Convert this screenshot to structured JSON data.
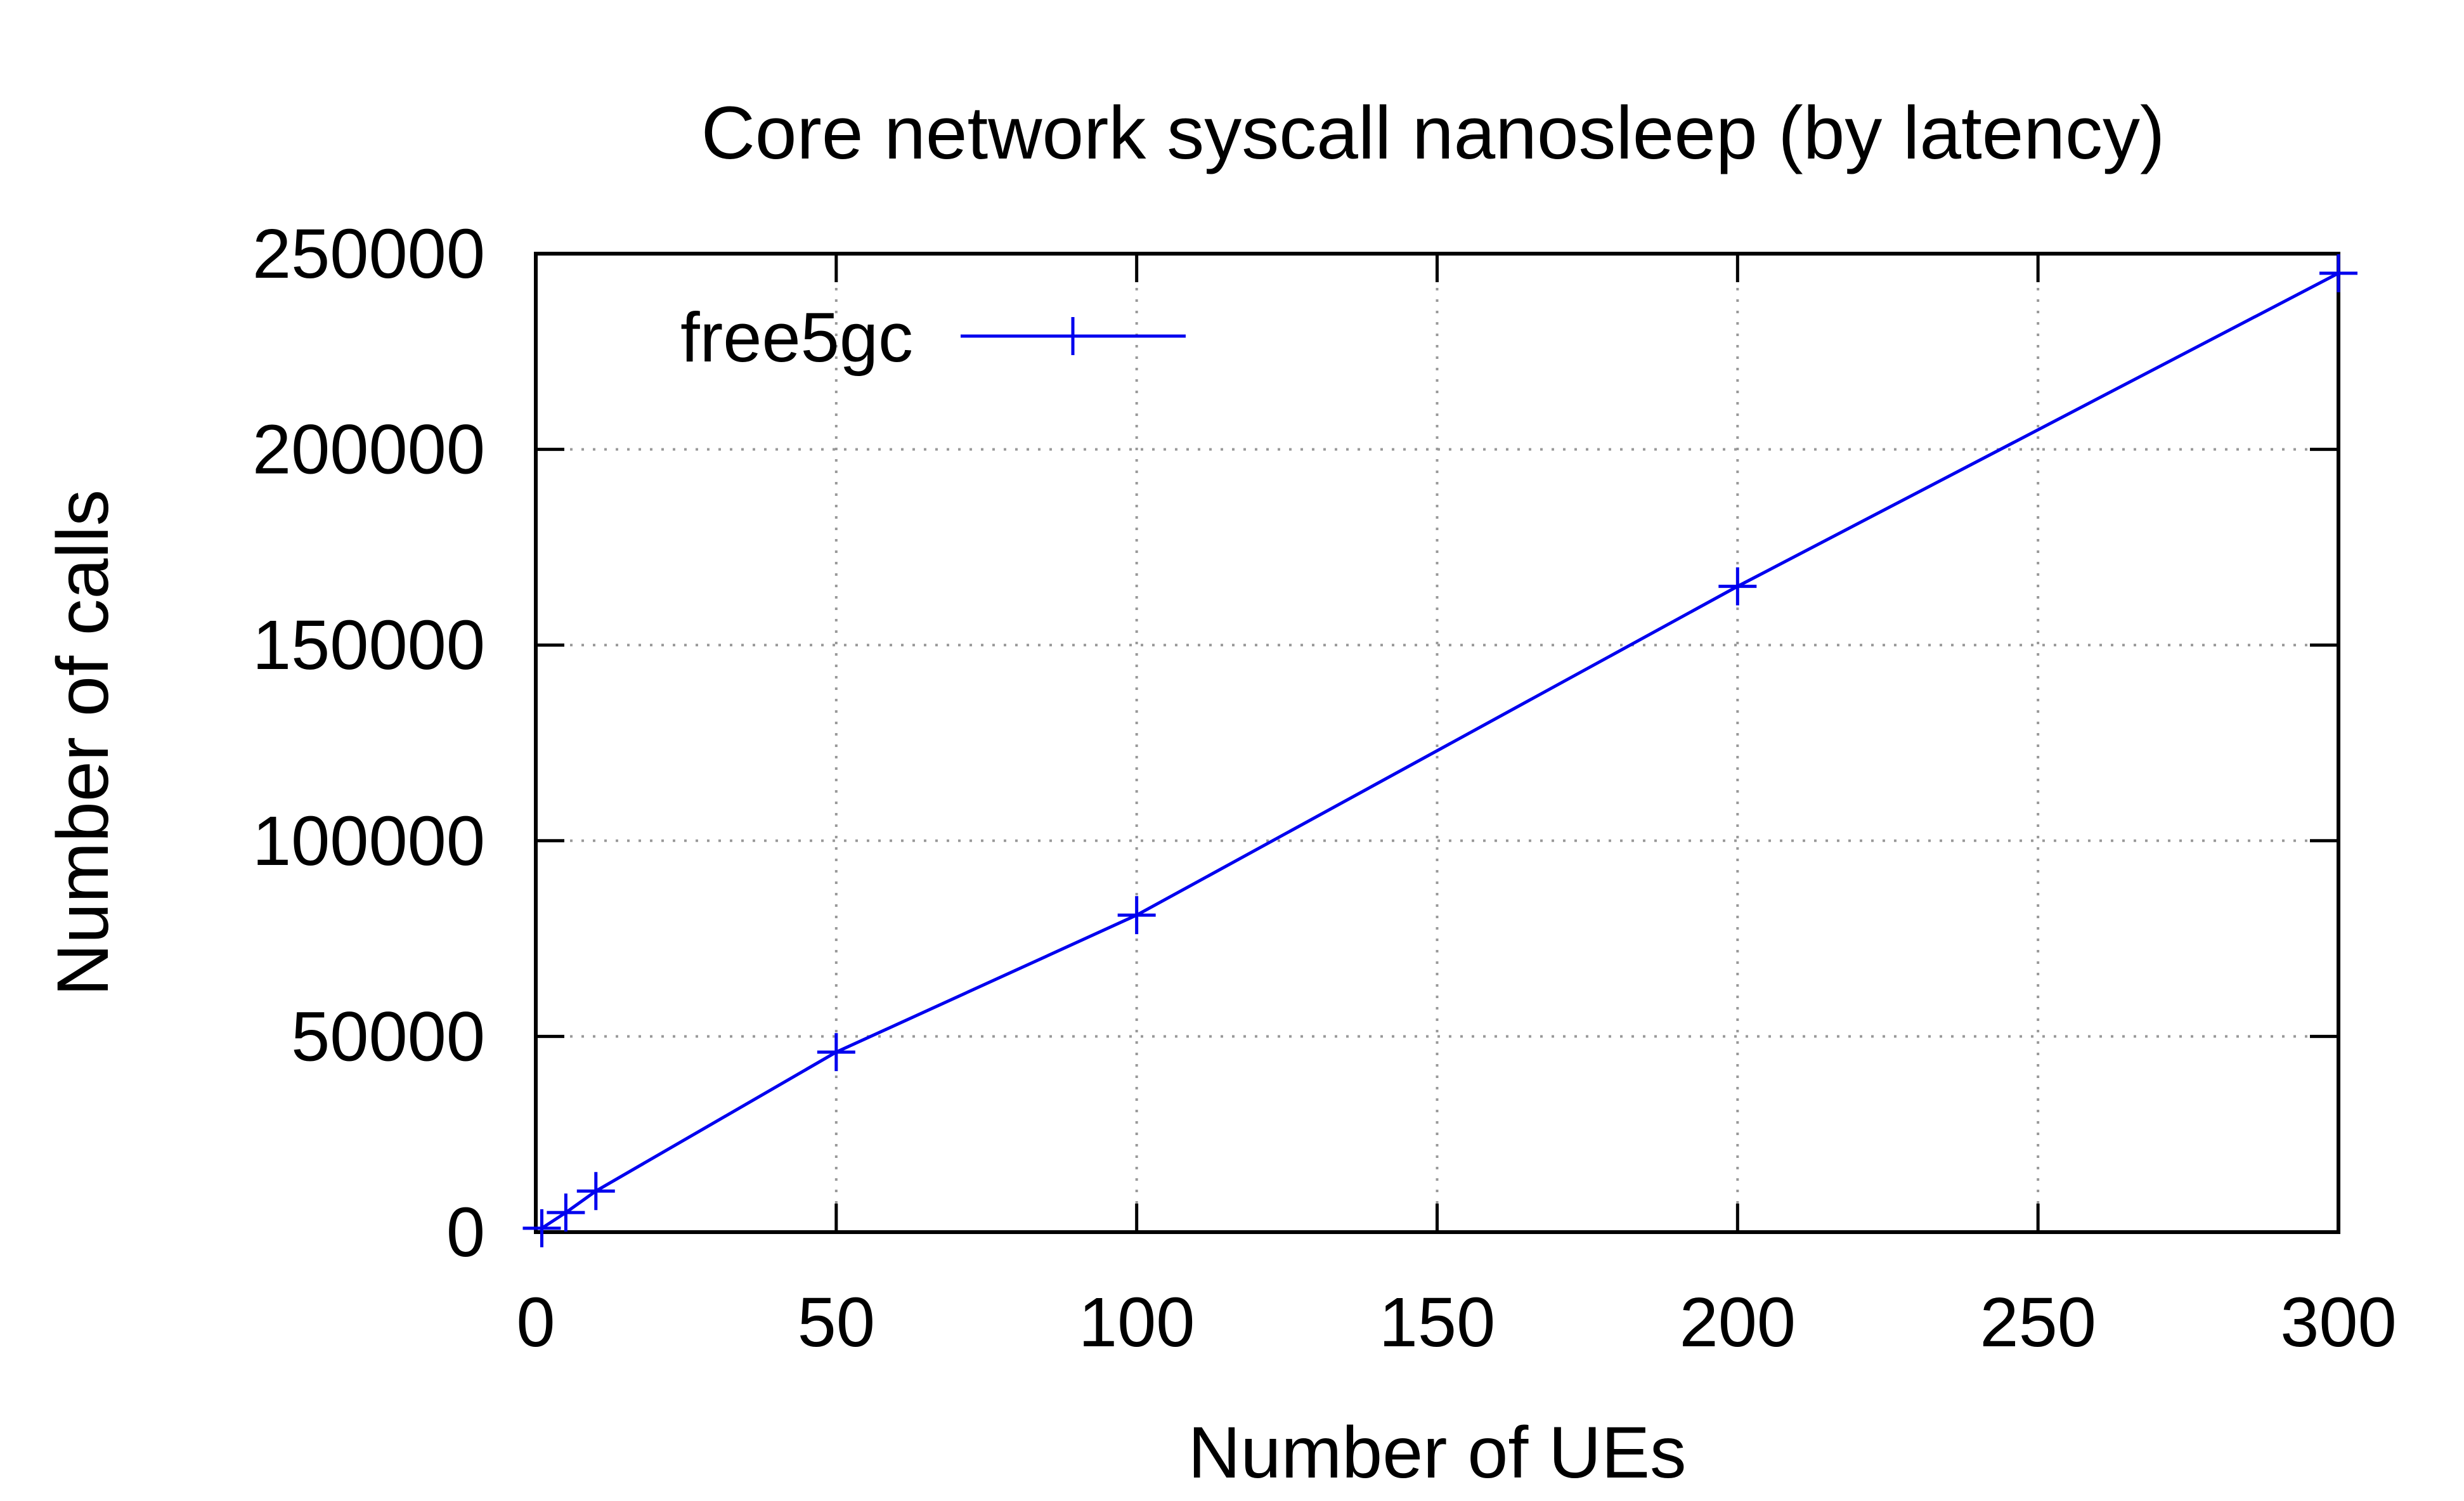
{
  "chart_data": {
    "type": "line",
    "title": "Core network syscall nanosleep (by latency)",
    "xlabel": "Number of UEs",
    "ylabel": "Number of calls",
    "xlim": [
      0,
      300
    ],
    "ylim": [
      0,
      250000
    ],
    "x_ticks": [
      "0",
      "50",
      "100",
      "150",
      "200",
      "250",
      "300"
    ],
    "y_ticks": [
      "0",
      "50000",
      "100000",
      "150000",
      "200000",
      "250000"
    ],
    "x_tick_values": [
      0,
      50,
      100,
      150,
      200,
      250,
      300
    ],
    "y_tick_values": [
      0,
      50000,
      100000,
      150000,
      200000,
      250000
    ],
    "grid": true,
    "legend_position": "top-left",
    "series": [
      {
        "name": "free5gc",
        "color": "#0000ee",
        "marker": "plus",
        "x": [
          1,
          5,
          10,
          50,
          100,
          200,
          300
        ],
        "y": [
          1000,
          5000,
          10500,
          46000,
          81000,
          165000,
          245000
        ]
      }
    ]
  }
}
